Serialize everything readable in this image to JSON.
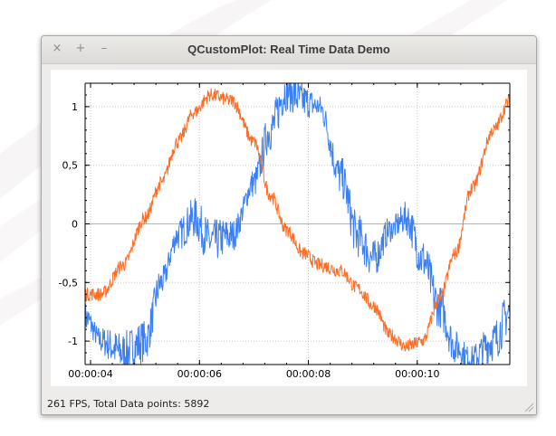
{
  "window": {
    "title": "QCustomPlot: Real Time Data Demo",
    "controls": [
      "×",
      "+",
      "–"
    ]
  },
  "status_text": "261 FPS, Total Data points: 5892",
  "colors": {
    "series1": "#3c7ff0",
    "series2": "#ff6d25"
  },
  "icons": {
    "close": "close-icon",
    "maximize": "maximize-icon",
    "minimize": "minimize-icon"
  },
  "chart_data": {
    "type": "line",
    "title": "",
    "xlabel": "",
    "ylabel": "",
    "xlim": [
      "00:00:03.9",
      "00:00:11.7"
    ],
    "ylim": [
      -1.2,
      1.2
    ],
    "x_ticks": [
      "00:00:04",
      "00:00:06",
      "00:00:08",
      "00:00:10"
    ],
    "y_ticks": [
      "1",
      "0,5",
      "0",
      "-0,5",
      "-1"
    ],
    "grid": true,
    "legend": "none",
    "series": [
      {
        "color": "#3c7ff0",
        "x": [
          3.9,
          4.2,
          4.6,
          5.0,
          5.3,
          5.6,
          5.9,
          6.2,
          6.6,
          7.0,
          7.3,
          7.6,
          7.9,
          8.2,
          8.6,
          8.9,
          9.2,
          9.5,
          9.8,
          10.1,
          10.4,
          10.7,
          11.0,
          11.4,
          11.7
        ],
        "y": [
          -0.8,
          -1.0,
          -1.1,
          -1.0,
          -0.5,
          -0.1,
          0.05,
          -0.15,
          -0.1,
          0.35,
          0.8,
          1.15,
          1.05,
          1.0,
          0.4,
          -0.1,
          -0.3,
          -0.05,
          0.05,
          -0.3,
          -0.7,
          -1.05,
          -1.15,
          -1.0,
          -0.75
        ]
      },
      {
        "color": "#ff6d25",
        "x": [
          3.9,
          4.2,
          4.6,
          5.0,
          5.3,
          5.6,
          5.9,
          6.2,
          6.6,
          7.0,
          7.3,
          7.6,
          7.9,
          8.2,
          8.6,
          8.9,
          9.2,
          9.5,
          9.8,
          10.1,
          10.4,
          10.7,
          11.0,
          11.4,
          11.7
        ],
        "y": [
          -0.6,
          -0.6,
          -0.35,
          0.05,
          0.35,
          0.7,
          0.95,
          1.1,
          1.05,
          0.7,
          0.25,
          -0.05,
          -0.25,
          -0.35,
          -0.4,
          -0.55,
          -0.7,
          -0.95,
          -1.05,
          -1.0,
          -0.65,
          -0.25,
          0.3,
          0.8,
          1.05
        ]
      }
    ]
  }
}
